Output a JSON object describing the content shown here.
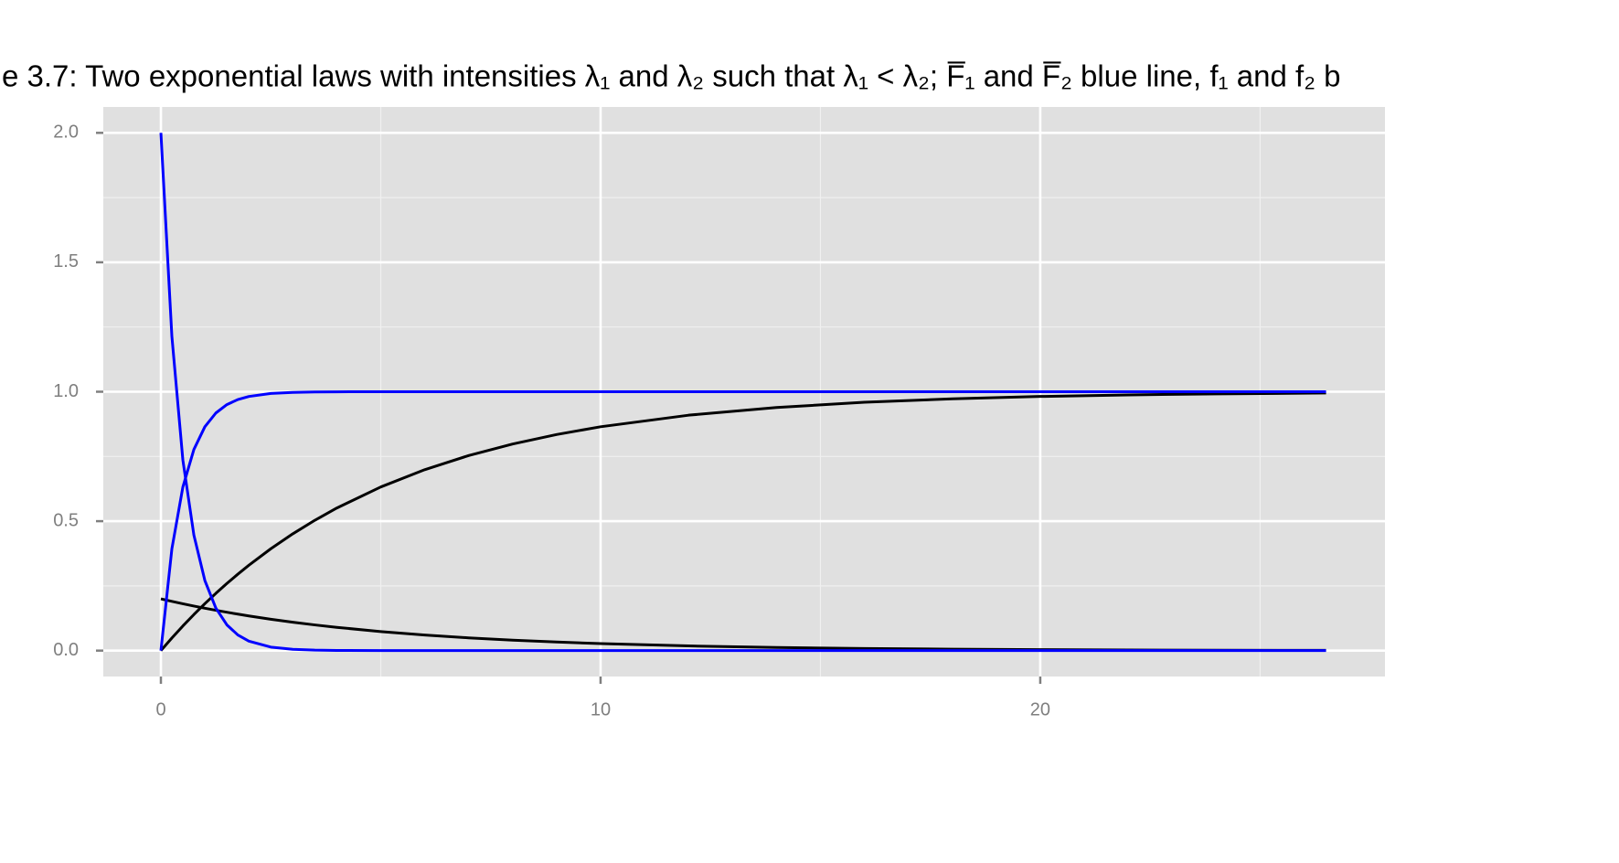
{
  "chart_data": {
    "type": "line",
    "title": "e 3.7: Two exponential laws with intensities λ₁ and λ₂ such that λ₁ < λ₂; F̅₁ and F̅₂ blue line, f₁ and f₂ b",
    "x": [
      0,
      0.25,
      0.5,
      0.75,
      1,
      1.25,
      1.5,
      1.75,
      2,
      2.5,
      3,
      3.5,
      4,
      5,
      6,
      7,
      8,
      9,
      10,
      12,
      14,
      16,
      18,
      20,
      22,
      24,
      26.5
    ],
    "series": [
      {
        "color": "#000000",
        "values": [
          0,
          0.0488,
          0.0952,
          0.1393,
          0.1813,
          0.2212,
          0.2592,
          0.2953,
          0.3297,
          0.3935,
          0.4512,
          0.5034,
          0.5507,
          0.6321,
          0.6988,
          0.7534,
          0.7981,
          0.8347,
          0.8647,
          0.9093,
          0.9392,
          0.9592,
          0.9727,
          0.9817,
          0.9877,
          0.9918,
          0.995
        ]
      },
      {
        "color": "#000000",
        "values": [
          0.2,
          0.1902,
          0.181,
          0.1721,
          0.1637,
          0.1558,
          0.1482,
          0.1409,
          0.1341,
          0.1213,
          0.1098,
          0.0993,
          0.0899,
          0.0736,
          0.0602,
          0.0493,
          0.0404,
          0.0331,
          0.0271,
          0.0181,
          0.0122,
          0.0082,
          0.0055,
          0.0037,
          0.0025,
          0.0016,
          0.001
        ]
      },
      {
        "color": "#0000ff",
        "values": [
          0,
          0.3935,
          0.6321,
          0.7769,
          0.8647,
          0.9179,
          0.9502,
          0.9698,
          0.9817,
          0.9933,
          0.9975,
          0.9991,
          0.9997,
          1,
          1,
          1,
          1,
          1,
          1,
          1,
          1,
          1,
          1,
          1,
          1,
          1,
          1
        ]
      },
      {
        "color": "#0000ff",
        "values": [
          2,
          1.2131,
          0.7358,
          0.4463,
          0.2707,
          0.1642,
          0.0996,
          0.0604,
          0.0366,
          0.0135,
          0.005,
          0.0018,
          0.0007,
          0.0001,
          0,
          0,
          0,
          0,
          0,
          0,
          0,
          0,
          0,
          0,
          0,
          0,
          0
        ]
      }
    ],
    "xlim": [
      -1.31,
      27.84
    ],
    "xticks": [
      0,
      10,
      20
    ],
    "ylim": [
      -0.1,
      2.1
    ],
    "yticks": [
      {
        "value": 0,
        "label": "0.0"
      },
      0.5,
      {
        "value": 1,
        "label": "1.0"
      },
      1.5,
      {
        "value": 2,
        "label": "2.0"
      }
    ],
    "grid": true
  }
}
